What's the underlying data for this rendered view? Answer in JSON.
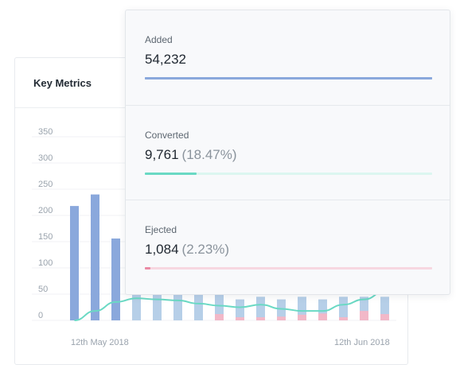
{
  "card": {
    "title": "Key Metrics"
  },
  "colors": {
    "added": "#8aa8dc",
    "added_light": "#b6cfe8",
    "converted": "#6ad9c4",
    "converted_track": "#dcf6f0",
    "ejected": "#ea8aa4",
    "ejected_light": "#f2b8c8",
    "ejected_track": "#f7d7e0"
  },
  "chart_data": {
    "type": "bar",
    "y_ticks": [
      "350",
      "300",
      "250",
      "200",
      "150",
      "100",
      "50",
      "0"
    ],
    "ylim": [
      0,
      350
    ],
    "x_labels": [
      "12th May 2018",
      "12th Jun 2018"
    ],
    "series": [
      {
        "values": [
          218,
          240,
          156,
          90,
          80,
          70,
          65,
          50,
          40,
          45,
          40,
          45,
          40,
          45,
          45,
          45
        ]
      },
      {
        "values": [
          0,
          0,
          0,
          0,
          0,
          0,
          0,
          20,
          10,
          10,
          12,
          18,
          22,
          10,
          30,
          20
        ]
      }
    ],
    "trend_line": [
      0,
      18,
      35,
      42,
      40,
      38,
      32,
      28,
      25,
      30,
      22,
      18,
      18,
      30,
      40,
      55
    ]
  },
  "metrics": [
    {
      "label": "Added",
      "value": "54,232",
      "percent": "",
      "fill": 1.0
    },
    {
      "label": "Converted",
      "value": "9,761",
      "percent": "(18.47%)",
      "fill": 0.18
    },
    {
      "label": "Ejected",
      "value": "1,084",
      "percent": "(2.23%)",
      "fill": 0.02
    }
  ]
}
